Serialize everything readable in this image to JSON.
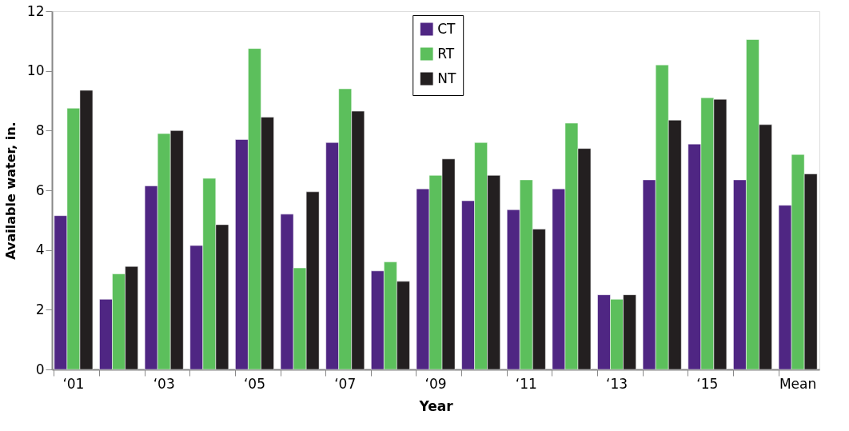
{
  "chart_data": {
    "type": "bar",
    "xlabel": "Year",
    "ylabel": "Available water, in.",
    "categories": [
      "‘01",
      null,
      "‘03",
      null,
      "‘05",
      null,
      "‘07",
      null,
      "‘09",
      null,
      "‘11",
      null,
      "‘13",
      null,
      "‘15",
      null,
      "Mean"
    ],
    "series": [
      {
        "name": "CT",
        "color": "#4f2683",
        "values": [
          5.15,
          2.35,
          6.15,
          4.15,
          7.7,
          5.2,
          7.6,
          3.3,
          6.05,
          5.65,
          5.35,
          6.05,
          2.5,
          6.35,
          7.55,
          6.35,
          5.5
        ]
      },
      {
        "name": "RT",
        "color": "#5cbf5c",
        "values": [
          8.75,
          3.2,
          7.9,
          6.4,
          10.75,
          3.4,
          9.4,
          3.6,
          6.5,
          7.6,
          6.35,
          8.25,
          2.35,
          10.2,
          9.1,
          11.05,
          7.2
        ]
      },
      {
        "name": "NT",
        "color": "#231f20",
        "values": [
          9.35,
          3.45,
          8.0,
          4.85,
          8.45,
          5.95,
          8.65,
          2.95,
          7.05,
          6.5,
          4.7,
          7.4,
          2.5,
          8.35,
          9.05,
          8.2,
          6.55
        ]
      }
    ],
    "ylim": [
      0,
      12
    ],
    "yticks": [
      0,
      2,
      4,
      6,
      8,
      10,
      12
    ],
    "grid": false,
    "legend": "top"
  }
}
